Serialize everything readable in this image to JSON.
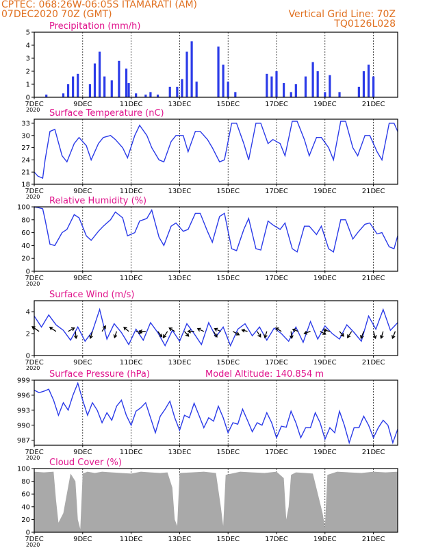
{
  "header": {
    "line1_left": "CPTEC:   068:26W-06:05S   ITAMARATI (AM)",
    "line2_left": "07DEC2020 70Z (GMT)",
    "line2_right": "Vertical Grid Line: 70Z",
    "line3_right": "TQ0126L028",
    "model_altitude": "Model Altitude: 140.854  m"
  },
  "x_axis": {
    "tick_labels": [
      "7DEC",
      "9DEC",
      "11DEC",
      "13DEC",
      "15DEC",
      "17DEC",
      "19DEC",
      "21DEC"
    ],
    "year_label": "2020",
    "start_day": 7,
    "end_day": 22
  },
  "colors": {
    "header": "#e07020",
    "panel_title": "#e0148c",
    "series": "#2b3be8",
    "cloud": "#a9a9a9"
  },
  "chart_data": [
    {
      "type": "bar",
      "title": "Precipitation (mm/h)",
      "ylim": [
        0,
        5
      ],
      "yticks": [
        "0",
        "1",
        "2",
        "3",
        "4",
        "5"
      ],
      "x_days": [
        7.5,
        8.2,
        8.4,
        8.6,
        8.8,
        9.3,
        9.5,
        9.7,
        9.9,
        10.2,
        10.5,
        10.8,
        10.9,
        11.2,
        11.6,
        11.8,
        12.1,
        12.6,
        12.9,
        13.1,
        13.3,
        13.5,
        13.7,
        14.6,
        14.8,
        15.0,
        15.3,
        16.6,
        16.8,
        17.0,
        17.3,
        17.6,
        17.8,
        18.2,
        18.5,
        18.7,
        19.0,
        19.2,
        19.6,
        20.4,
        20.6,
        20.8,
        21.0
      ],
      "values": [
        0.2,
        0.3,
        1.0,
        1.6,
        1.8,
        1.0,
        2.6,
        3.5,
        1.6,
        1.3,
        2.8,
        2.2,
        1.1,
        0.3,
        0.2,
        0.4,
        0.2,
        0.8,
        0.8,
        1.4,
        3.5,
        4.3,
        1.2,
        3.9,
        2.5,
        1.2,
        0.4,
        1.8,
        1.6,
        2.0,
        1.1,
        0.4,
        1.0,
        1.6,
        2.7,
        2.0,
        0.4,
        1.7,
        0.4,
        0.8,
        2.0,
        2.5,
        1.6
      ]
    },
    {
      "type": "line",
      "title": "Surface Temperature (nC)",
      "ylim": [
        18,
        34
      ],
      "yticks": [
        "18",
        "21",
        "24",
        "27",
        "30",
        "33"
      ],
      "x_days": [
        7.0,
        7.15,
        7.35,
        7.45,
        7.65,
        7.85,
        8.15,
        8.35,
        8.65,
        8.85,
        9.15,
        9.35,
        9.65,
        9.85,
        10.15,
        10.35,
        10.65,
        10.85,
        11.15,
        11.35,
        11.65,
        11.85,
        12.15,
        12.35,
        12.65,
        12.85,
        13.15,
        13.35,
        13.65,
        13.85,
        14.15,
        14.35,
        14.65,
        14.85,
        15.15,
        15.35,
        15.65,
        15.85,
        16.15,
        16.35,
        16.65,
        16.85,
        17.15,
        17.35,
        17.65,
        17.85,
        18.15,
        18.35,
        18.65,
        18.85,
        19.15,
        19.35,
        19.65,
        19.85,
        20.15,
        20.35,
        20.65,
        20.85,
        21.15,
        21.35,
        21.65,
        21.85,
        22.0
      ],
      "values": [
        21,
        20,
        19.5,
        24,
        31,
        31.5,
        25,
        23.5,
        28,
        29.5,
        27.5,
        24,
        28,
        29.5,
        30,
        29,
        27,
        24.5,
        30,
        32.5,
        30,
        27,
        24,
        23.5,
        28.5,
        30,
        30,
        26,
        31,
        31,
        29,
        27,
        23.5,
        24,
        33,
        33,
        28,
        24,
        33,
        33,
        28,
        29,
        28,
        25,
        33.5,
        33.5,
        29,
        25,
        29.5,
        29.5,
        27,
        24,
        33.5,
        33.5,
        27,
        25,
        30,
        30,
        26,
        24,
        33,
        33,
        31
      ]
    },
    {
      "type": "line",
      "title": "Relative Humidity (%)",
      "ylim": [
        0,
        100
      ],
      "yticks": [
        "0",
        "20",
        "40",
        "60",
        "80",
        "100"
      ],
      "x_days": [
        7.0,
        7.15,
        7.35,
        7.45,
        7.65,
        7.85,
        8.15,
        8.35,
        8.65,
        8.85,
        9.15,
        9.35,
        9.65,
        9.85,
        10.15,
        10.35,
        10.65,
        10.85,
        11.15,
        11.35,
        11.65,
        11.85,
        12.15,
        12.35,
        12.65,
        12.85,
        13.15,
        13.35,
        13.65,
        13.85,
        14.15,
        14.35,
        14.65,
        14.85,
        15.15,
        15.35,
        15.65,
        15.85,
        16.15,
        16.35,
        16.65,
        16.85,
        17.15,
        17.35,
        17.65,
        17.85,
        18.15,
        18.35,
        18.65,
        18.85,
        19.15,
        19.35,
        19.65,
        19.85,
        20.15,
        20.35,
        20.65,
        20.85,
        21.15,
        21.35,
        21.65,
        21.85,
        22.0
      ],
      "values": [
        100,
        99,
        97,
        80,
        42,
        40,
        60,
        65,
        88,
        83,
        55,
        48,
        62,
        70,
        80,
        92,
        83,
        55,
        60,
        78,
        82,
        95,
        53,
        40,
        70,
        75,
        62,
        65,
        90,
        90,
        62,
        45,
        85,
        90,
        35,
        32,
        65,
        82,
        35,
        33,
        78,
        72,
        65,
        75,
        35,
        30,
        70,
        70,
        57,
        70,
        35,
        30,
        80,
        80,
        50,
        60,
        73,
        75,
        58,
        60,
        38,
        35,
        55
      ]
    },
    {
      "type": "line",
      "title": "Surface Wind (m/s)",
      "ylim": [
        0,
        5
      ],
      "yticks": [
        "0",
        "2",
        "4"
      ],
      "x_days": [
        7.0,
        7.3,
        7.6,
        7.9,
        8.2,
        8.5,
        8.8,
        9.1,
        9.4,
        9.7,
        10.0,
        10.3,
        10.6,
        10.9,
        11.2,
        11.5,
        11.8,
        12.1,
        12.4,
        12.7,
        13.0,
        13.3,
        13.6,
        13.9,
        14.2,
        14.5,
        14.8,
        15.1,
        15.4,
        15.7,
        16.0,
        16.3,
        16.6,
        16.9,
        17.2,
        17.5,
        17.8,
        18.1,
        18.4,
        18.7,
        19.0,
        19.3,
        19.6,
        19.9,
        20.2,
        20.5,
        20.8,
        21.1,
        21.4,
        21.7,
        22.0
      ],
      "values": [
        3.6,
        2.6,
        3.7,
        2.8,
        2.3,
        1.4,
        2.6,
        1.3,
        2.2,
        4.2,
        1.5,
        2.9,
        2.1,
        1.0,
        2.4,
        1.4,
        3.0,
        2.1,
        0.9,
        2.3,
        1.3,
        2.9,
        2.0,
        1.0,
        3.0,
        1.7,
        2.6,
        0.9,
        2.4,
        2.9,
        1.8,
        2.6,
        1.4,
        2.5,
        2.0,
        1.3,
        2.6,
        1.2,
        3.1,
        1.5,
        2.7,
        2.0,
        1.5,
        2.8,
        2.1,
        1.3,
        3.6,
        2.4,
        4.2,
        2.3,
        3.0
      ],
      "arrows": [
        {
          "day": 7.2,
          "dx": -10,
          "dy": -7
        },
        {
          "day": 7.9,
          "dx": -9,
          "dy": -6
        },
        {
          "day": 8.4,
          "dx": 9,
          "dy": -5
        },
        {
          "day": 8.7,
          "dx": 1,
          "dy": 10
        },
        {
          "day": 9.4,
          "dx": -3,
          "dy": 10
        },
        {
          "day": 9.8,
          "dx": 5,
          "dy": -8
        },
        {
          "day": 10.4,
          "dx": -3,
          "dy": 9
        },
        {
          "day": 10.9,
          "dx": -7,
          "dy": -6
        },
        {
          "day": 11.2,
          "dx": 8,
          "dy": 2
        },
        {
          "day": 11.6,
          "dx": -9,
          "dy": 0
        },
        {
          "day": 12.1,
          "dx": 6,
          "dy": 8
        },
        {
          "day": 12.5,
          "dx": -6,
          "dy": 9
        },
        {
          "day": 12.8,
          "dx": -8,
          "dy": -5
        },
        {
          "day": 13.2,
          "dx": 6,
          "dy": 7
        },
        {
          "day": 13.6,
          "dx": -9,
          "dy": 0
        },
        {
          "day": 14.0,
          "dx": -9,
          "dy": -4
        },
        {
          "day": 14.4,
          "dx": 5,
          "dy": 8
        },
        {
          "day": 14.7,
          "dx": -9,
          "dy": -4
        },
        {
          "day": 15.2,
          "dx": 9,
          "dy": 5
        },
        {
          "day": 15.8,
          "dx": -8,
          "dy": -2
        },
        {
          "day": 16.2,
          "dx": 5,
          "dy": 8
        },
        {
          "day": 16.6,
          "dx": -3,
          "dy": 9
        },
        {
          "day": 17.2,
          "dx": -8,
          "dy": -5
        },
        {
          "day": 17.6,
          "dx": 1,
          "dy": 10
        },
        {
          "day": 17.9,
          "dx": -8,
          "dy": -3
        },
        {
          "day": 18.4,
          "dx": -9,
          "dy": 3
        },
        {
          "day": 18.8,
          "dx": 8,
          "dy": 4
        },
        {
          "day": 19.2,
          "dx": -9,
          "dy": -2
        },
        {
          "day": 19.6,
          "dx": 6,
          "dy": 7
        },
        {
          "day": 20.1,
          "dx": -6,
          "dy": 9
        },
        {
          "day": 20.6,
          "dx": -4,
          "dy": 10
        },
        {
          "day": 21.0,
          "dx": 3,
          "dy": 10
        },
        {
          "day": 21.4,
          "dx": -3,
          "dy": 10
        },
        {
          "day": 21.9,
          "dx": -4,
          "dy": 10
        }
      ]
    },
    {
      "type": "line",
      "title": "Surface Pressure (hPa)",
      "ylim": [
        986,
        999
      ],
      "yticks": [
        "987",
        "990",
        "993",
        "996",
        "999"
      ],
      "x_days": [
        7.0,
        7.2,
        7.4,
        7.6,
        7.8,
        8.0,
        8.2,
        8.4,
        8.6,
        8.8,
        9.0,
        9.2,
        9.4,
        9.6,
        9.8,
        10.0,
        10.2,
        10.4,
        10.6,
        10.8,
        11.0,
        11.2,
        11.4,
        11.6,
        11.8,
        12.0,
        12.2,
        12.4,
        12.6,
        12.8,
        13.0,
        13.2,
        13.4,
        13.6,
        13.8,
        14.0,
        14.2,
        14.4,
        14.6,
        14.8,
        15.0,
        15.2,
        15.4,
        15.6,
        15.8,
        16.0,
        16.2,
        16.4,
        16.6,
        16.8,
        17.0,
        17.2,
        17.4,
        17.6,
        17.8,
        18.0,
        18.2,
        18.4,
        18.6,
        18.8,
        19.0,
        19.2,
        19.4,
        19.6,
        19.8,
        20.0,
        20.2,
        20.4,
        20.6,
        20.8,
        21.0,
        21.2,
        21.4,
        21.6,
        21.8,
        22.0
      ],
      "values": [
        997,
        996.5,
        996.8,
        997.2,
        995,
        992,
        994.5,
        993,
        996,
        998.4,
        995,
        992,
        994.5,
        993,
        990.5,
        992.5,
        991,
        993.8,
        995,
        992,
        990,
        992.8,
        993.5,
        994.5,
        991.5,
        988.5,
        991.8,
        993.2,
        994.8,
        991.5,
        989,
        992,
        991.5,
        994.4,
        992,
        989.5,
        991.5,
        990.8,
        993.8,
        991.5,
        988.5,
        990.5,
        990.2,
        993.2,
        991,
        988.7,
        990.5,
        990,
        992.5,
        990.5,
        987.5,
        989.8,
        989.6,
        992.8,
        990.5,
        987.5,
        989.5,
        989.5,
        992.5,
        990.5,
        987.2,
        989.5,
        988.5,
        992.8,
        990,
        986.5,
        989.5,
        989.5,
        991.8,
        990,
        987.5,
        989.5,
        991,
        990,
        986.5,
        989.2
      ]
    },
    {
      "type": "area",
      "title": "Cloud Cover (%)",
      "ylim": [
        0,
        100
      ],
      "yticks": [
        "0",
        "20",
        "40",
        "60",
        "80",
        "100"
      ],
      "x_days": [
        7.0,
        7.4,
        7.8,
        7.9,
        8.0,
        8.2,
        8.5,
        8.7,
        8.8,
        8.9,
        9.0,
        9.2,
        9.5,
        9.8,
        10.2,
        10.6,
        11.0,
        11.4,
        11.8,
        12.2,
        12.5,
        12.7,
        12.8,
        12.9,
        13.0,
        13.5,
        14.0,
        14.5,
        14.7,
        14.8,
        14.9,
        15.5,
        16.0,
        16.5,
        17.0,
        17.3,
        17.4,
        17.5,
        17.6,
        17.8,
        18.2,
        18.5,
        18.9,
        19.0,
        19.1,
        19.5,
        20.0,
        20.5,
        21.0,
        21.5,
        22.0
      ],
      "values": [
        95,
        94,
        95,
        50,
        15,
        30,
        92,
        80,
        20,
        5,
        92,
        95,
        93,
        95,
        94,
        93,
        92,
        95,
        94,
        93,
        94,
        70,
        20,
        10,
        93,
        94,
        95,
        93,
        40,
        10,
        90,
        95,
        94,
        93,
        95,
        85,
        20,
        40,
        90,
        94,
        93,
        92,
        30,
        8,
        90,
        95,
        94,
        93,
        95,
        94,
        95
      ]
    }
  ]
}
